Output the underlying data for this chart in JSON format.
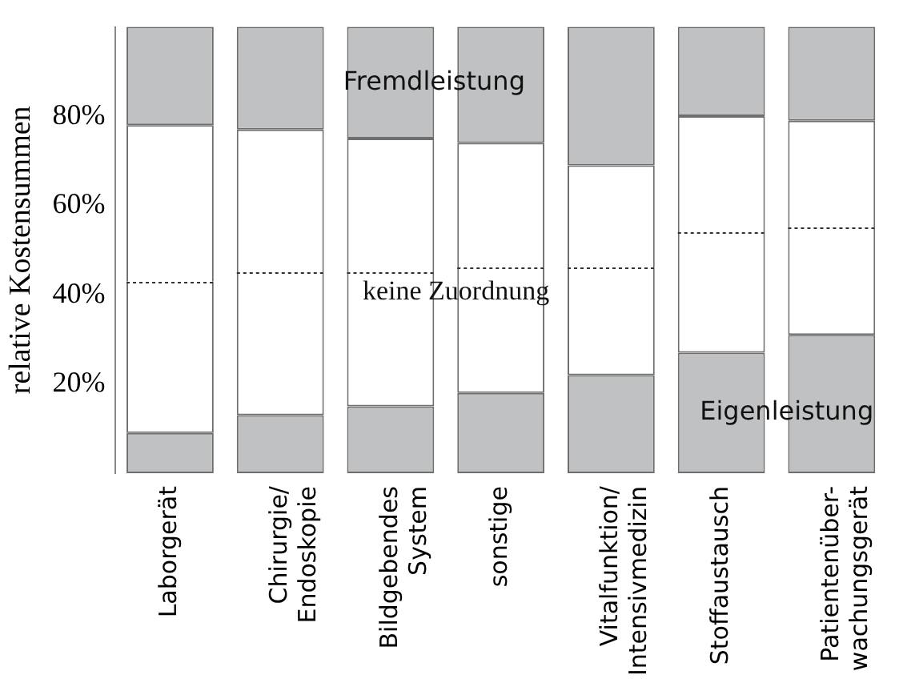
{
  "chart_data": {
    "type": "bar",
    "stacked": true,
    "ylabel": "relative Kostensummen",
    "categories": [
      "Laborgerät",
      "Chirurgie/\nEndoskopie",
      "Bildgebendes\nSystem",
      "sonstige",
      "Vitalfunktion/\nIntensivmedizin",
      "Stoffaustausch",
      "Patientenüber-\nwachungsgerät"
    ],
    "series": [
      {
        "name": "Eigenleistung",
        "color": "#bfc1c2",
        "values": [
          9,
          13,
          15,
          18,
          22,
          27,
          31
        ]
      },
      {
        "name": "keine Zuordnung",
        "color": "#ffffff",
        "values": [
          34,
          32,
          30,
          28,
          24,
          27,
          24
        ]
      },
      {
        "color": "#ffffff",
        "values": [
          35,
          32,
          30,
          28,
          23,
          26,
          24
        ]
      },
      {
        "name": "Fremdleistung",
        "color": "#bfc1c2",
        "values": [
          22,
          23,
          25,
          26,
          31,
          20,
          21
        ]
      }
    ],
    "ylim": [
      0,
      100
    ],
    "yticks": [
      {
        "value": 20,
        "label": "20%"
      },
      {
        "value": 40,
        "label": "40%"
      },
      {
        "value": 60,
        "label": "60%"
      },
      {
        "value": 80,
        "label": "80%"
      }
    ],
    "grid": false,
    "legend": false
  }
}
